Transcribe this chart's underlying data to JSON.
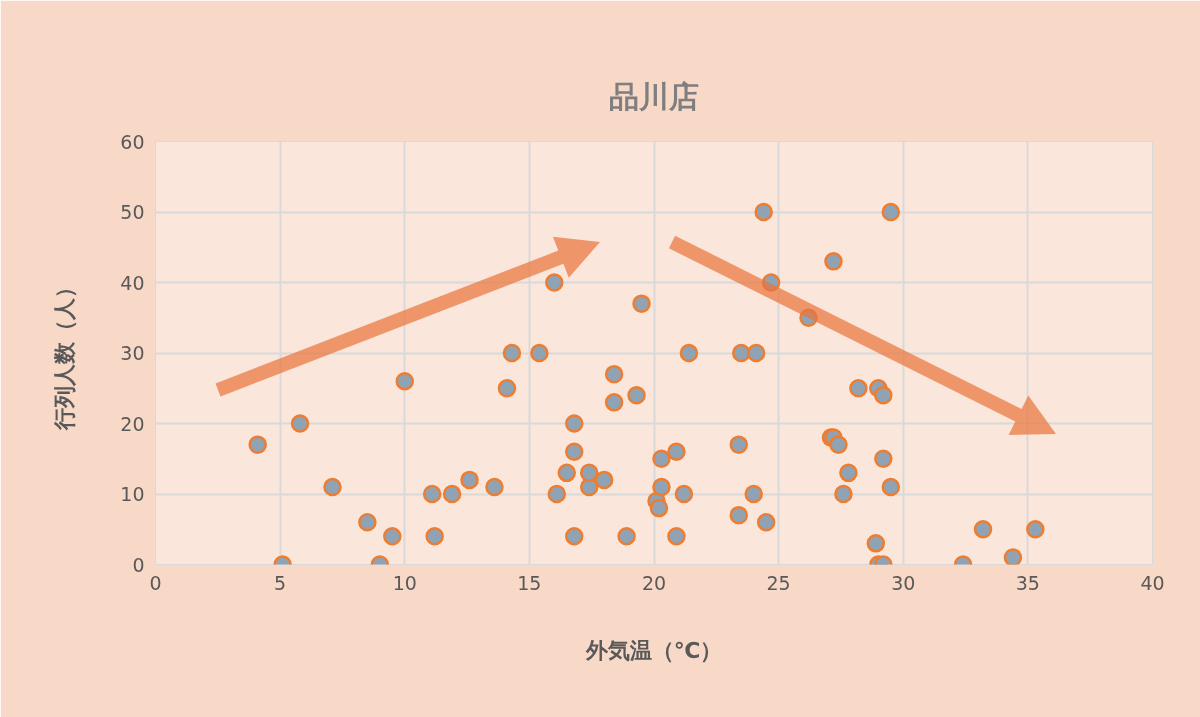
{
  "chart_data": {
    "type": "scatter",
    "title": "品川店",
    "xlabel": "外気温（℃）",
    "ylabel": "行列人数（人）",
    "x": [
      4.1,
      5.1,
      5.8,
      7.1,
      8.5,
      9.0,
      9.5,
      10.0,
      11.1,
      11.2,
      11.9,
      12.6,
      13.6,
      14.1,
      14.3,
      15.4,
      16.0,
      16.1,
      16.5,
      16.8,
      16.8,
      16.8,
      17.4,
      17.4,
      18.0,
      18.4,
      18.4,
      18.9,
      19.3,
      19.5,
      20.1,
      20.2,
      20.3,
      20.3,
      20.9,
      20.9,
      21.2,
      21.4,
      23.4,
      23.4,
      23.5,
      24.0,
      24.1,
      24.4,
      24.5,
      24.7,
      26.2,
      27.1,
      27.2,
      27.2,
      27.4,
      27.6,
      27.8,
      28.2,
      28.9,
      29.0,
      29.0,
      29.2,
      29.2,
      29.2,
      29.5,
      29.5,
      32.4,
      33.2,
      34.4,
      35.3
    ],
    "series": [
      {
        "color": "#8fa3b4",
        "values": [
          17,
          0,
          20,
          11,
          6,
          0,
          4,
          26,
          10,
          4,
          10,
          12,
          11,
          25,
          30,
          30,
          40,
          10,
          13,
          16,
          20,
          4,
          11,
          13,
          12,
          23,
          27,
          4,
          24,
          37,
          9,
          8,
          11,
          15,
          16,
          4,
          10,
          30,
          17,
          7,
          30,
          10,
          30,
          50,
          6,
          40,
          35,
          18,
          18,
          43,
          17,
          10,
          13,
          25,
          3,
          25,
          0,
          0,
          24,
          15,
          11,
          50,
          0,
          5,
          1,
          5
        ]
      }
    ],
    "xlim": [
      0,
      40
    ],
    "ylim": [
      0,
      60
    ],
    "xticks": [
      0,
      5,
      10,
      15,
      20,
      25,
      30,
      35,
      40
    ],
    "yticks": [
      0,
      10,
      20,
      30,
      40,
      50,
      60
    ],
    "grid": true,
    "marker": "circle"
  }
}
